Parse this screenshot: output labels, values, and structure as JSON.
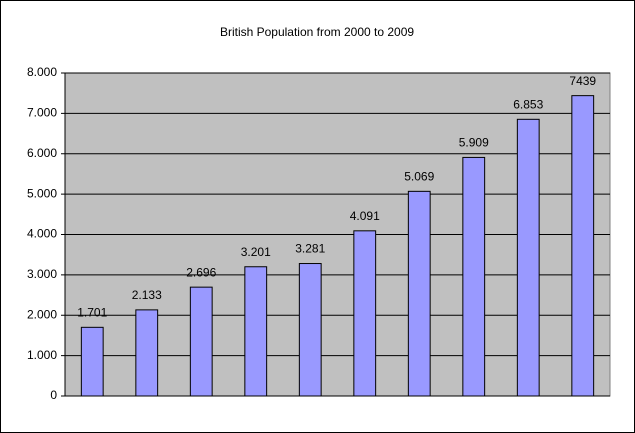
{
  "chart_data": {
    "type": "bar",
    "title": "British Population from 2000 to 2009",
    "categories": [
      null,
      null,
      null,
      null,
      null,
      null,
      null,
      null,
      null,
      null
    ],
    "values": [
      1701,
      2133,
      2696,
      3201,
      3281,
      4091,
      5069,
      5909,
      6853,
      7439
    ],
    "value_labels": [
      "1.701",
      "2.133",
      "2.696",
      "3.201",
      "3.281",
      "4.091",
      "5.069",
      "5.909",
      "6.853",
      "7439"
    ],
    "color": "#9999ff",
    "ylim": [
      0,
      8000
    ],
    "yticks": [
      0,
      {
        "value": 1000,
        "label": "1.000"
      },
      {
        "value": 2000,
        "label": "2.000"
      },
      {
        "value": 3000,
        "label": "3.000"
      },
      {
        "value": 4000,
        "label": "4.000"
      },
      {
        "value": 5000,
        "label": "5.000"
      },
      {
        "value": 6000,
        "label": "6.000"
      },
      {
        "value": 7000,
        "label": "7.000"
      },
      {
        "value": 8000,
        "label": "8.000"
      }
    ],
    "grid": true
  }
}
